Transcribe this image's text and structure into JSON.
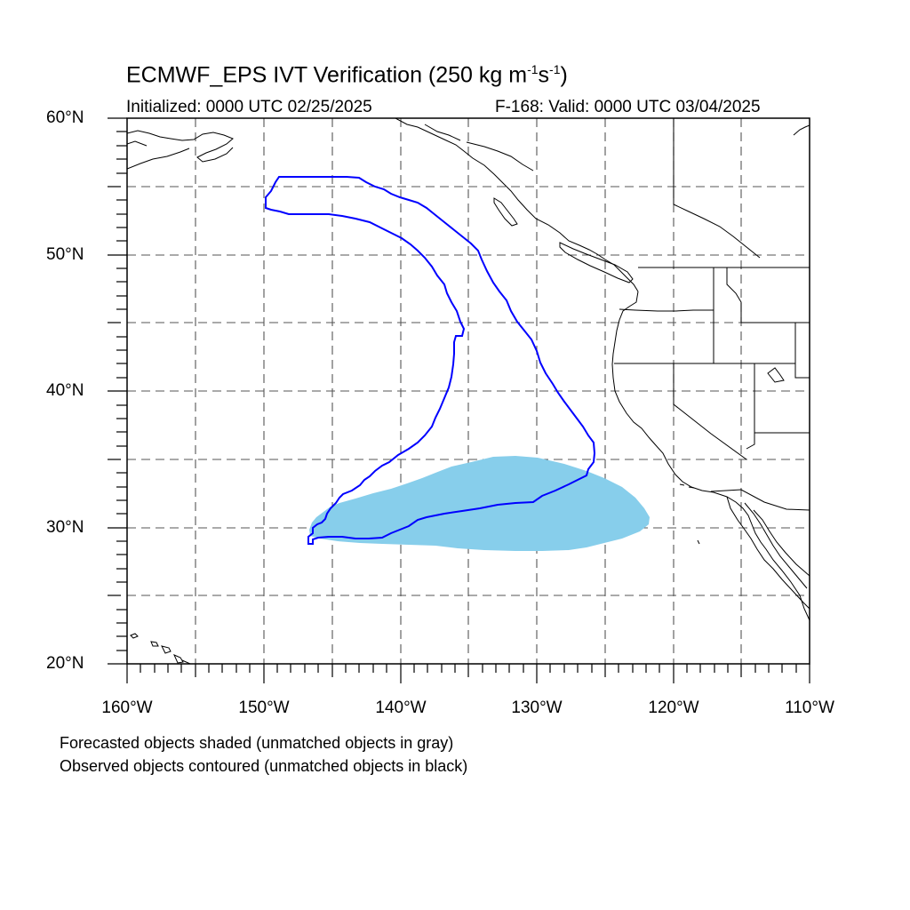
{
  "title": {
    "main": "ECMWF_EPS IVT Verification (250 kg m",
    "exp1": "-1",
    "mid": "s",
    "exp2": "-1",
    "end": ")"
  },
  "subtitle": {
    "initialized": "Initialized: 0000 UTC 02/25/2025",
    "valid": "F-168: Valid: 0000 UTC 03/04/2025"
  },
  "map": {
    "lon_range": [
      -160,
      -110
    ],
    "lat_range": [
      20,
      60
    ],
    "grid_interval_deg": 5,
    "grid_style": "dashed",
    "forecast_color": "#87ceeb",
    "observed_color": "#0000ff"
  },
  "lat_labels": [
    "60°N",
    "50°N",
    "40°N",
    "30°N",
    "20°N"
  ],
  "lon_labels": [
    "160°W",
    "150°W",
    "140°W",
    "130°W",
    "120°W",
    "110°W"
  ],
  "footnotes": {
    "line1": "Forecasted objects shaded (unmatched objects in gray)",
    "line2": "Observed objects contoured (unmatched objects in black)"
  }
}
